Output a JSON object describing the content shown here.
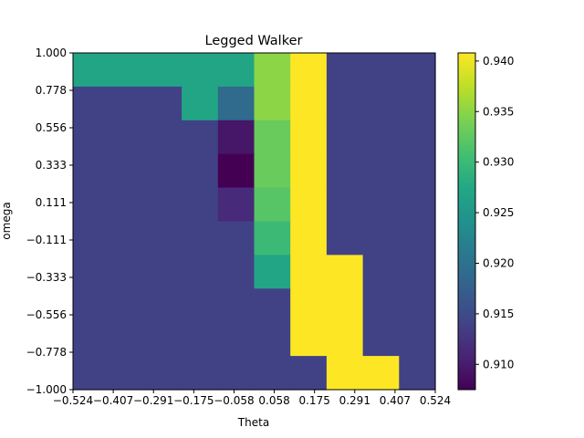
{
  "chart_data": {
    "type": "heatmap",
    "title": "Legged Walker",
    "xlabel": "Theta",
    "ylabel": "omega",
    "x_tick_labels": [
      "−0.524",
      "−0.407",
      "−0.291",
      "−0.175",
      "−0.058",
      "0.058",
      "0.175",
      "0.291",
      "0.407",
      "0.524"
    ],
    "y_tick_labels": [
      "1.000",
      "0.778",
      "0.556",
      "0.333",
      "0.111",
      "−0.111",
      "−0.333",
      "−0.556",
      "−0.778",
      "−1.000"
    ],
    "xlim": [
      -0.524,
      0.524
    ],
    "ylim": [
      -1.0,
      1.0
    ],
    "x_centers": [
      -0.524,
      -0.407,
      -0.291,
      -0.175,
      -0.058,
      0.058,
      0.175,
      0.291,
      0.407,
      0.524
    ],
    "y_centers": [
      1.0,
      0.778,
      0.556,
      0.333,
      0.111,
      -0.111,
      -0.333,
      -0.556,
      -0.778,
      -1.0
    ],
    "grid_note": "rows ordered top to bottom by omega, columns left to right by theta",
    "values": [
      [
        0.927,
        0.927,
        0.927,
        0.927,
        0.927,
        0.935,
        0.941,
        0.914,
        0.914,
        0.914
      ],
      [
        0.914,
        0.914,
        0.914,
        0.927,
        0.919,
        0.935,
        0.941,
        0.914,
        0.914,
        0.914
      ],
      [
        0.914,
        0.914,
        0.914,
        0.914,
        0.9095,
        0.933,
        0.941,
        0.914,
        0.914,
        0.914
      ],
      [
        0.914,
        0.914,
        0.914,
        0.914,
        0.9075,
        0.933,
        0.941,
        0.914,
        0.914,
        0.914
      ],
      [
        0.914,
        0.914,
        0.914,
        0.914,
        0.9115,
        0.932,
        0.941,
        0.914,
        0.914,
        0.914
      ],
      [
        0.914,
        0.914,
        0.914,
        0.914,
        0.914,
        0.93,
        0.941,
        0.914,
        0.914,
        0.914
      ],
      [
        0.914,
        0.914,
        0.914,
        0.914,
        0.914,
        0.927,
        0.941,
        0.941,
        0.914,
        0.914
      ],
      [
        0.914,
        0.914,
        0.914,
        0.914,
        0.914,
        0.914,
        0.941,
        0.941,
        0.914,
        0.914
      ],
      [
        0.914,
        0.914,
        0.914,
        0.914,
        0.914,
        0.914,
        0.941,
        0.941,
        0.914,
        0.914
      ],
      [
        0.914,
        0.914,
        0.914,
        0.914,
        0.914,
        0.914,
        0.914,
        0.941,
        0.941,
        0.914
      ]
    ],
    "colorbar": {
      "min": 0.9075,
      "max": 0.9408,
      "ticks": [
        0.91,
        0.915,
        0.92,
        0.925,
        0.93,
        0.935,
        0.94
      ],
      "tick_labels": [
        "0.910",
        "0.915",
        "0.920",
        "0.925",
        "0.930",
        "0.935",
        "0.940"
      ],
      "colormap": "viridis"
    },
    "legend": "none",
    "grid": false
  }
}
